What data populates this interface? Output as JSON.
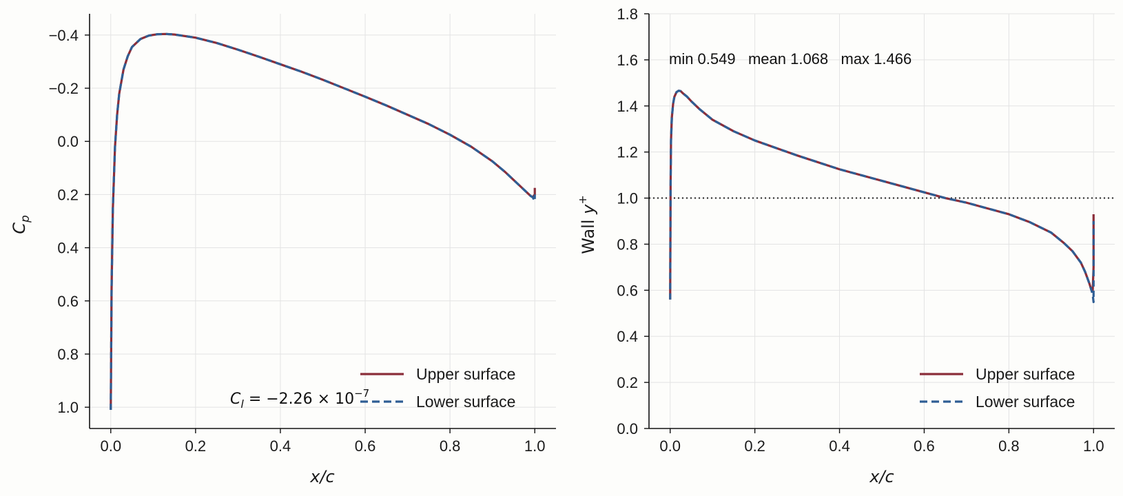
{
  "chart_data": [
    {
      "type": "line",
      "ylabel_symbol": "C",
      "ylabel_sub": "p",
      "xlabel": "x/c",
      "xlim": [
        -0.05,
        1.05
      ],
      "ylim": [
        1.08,
        -0.48
      ],
      "y_inverted": true,
      "grid": true,
      "legend_placement": "lower-right",
      "xticks": [
        0.0,
        0.2,
        0.4,
        0.6,
        0.8,
        1.0
      ],
      "xtick_labels": [
        "0.0",
        "0.2",
        "0.4",
        "0.6",
        "0.8",
        "1.0"
      ],
      "yticks": [
        -0.4,
        -0.2,
        0.0,
        0.2,
        0.4,
        0.6,
        0.8,
        1.0
      ],
      "ytick_labels": [
        "−0.4",
        "−0.2",
        "0.0",
        "0.2",
        "0.4",
        "0.6",
        "0.8",
        "1.0"
      ],
      "annotation": {
        "lhs_symbol": "C",
        "lhs_sub": "l",
        "equals": " = ",
        "mantissa": "−2.26",
        "times": " × ",
        "base": "10",
        "exponent": "−7"
      },
      "series": [
        {
          "name": "Upper surface",
          "color": "#8b2e3a",
          "style": "solid",
          "x": [
            0.0,
            0.002,
            0.005,
            0.01,
            0.015,
            0.02,
            0.03,
            0.04,
            0.05,
            0.07,
            0.09,
            0.11,
            0.13,
            0.15,
            0.2,
            0.25,
            0.3,
            0.35,
            0.4,
            0.45,
            0.5,
            0.55,
            0.6,
            0.65,
            0.7,
            0.75,
            0.8,
            0.85,
            0.9,
            0.93,
            0.95,
            0.97,
            0.98,
            0.99,
            0.995,
            1.0,
            1.0
          ],
          "y": [
            1.01,
            0.55,
            0.25,
            0.02,
            -0.1,
            -0.18,
            -0.27,
            -0.32,
            -0.355,
            -0.385,
            -0.398,
            -0.403,
            -0.404,
            -0.402,
            -0.39,
            -0.37,
            -0.345,
            -0.318,
            -0.29,
            -0.262,
            -0.232,
            -0.2,
            -0.168,
            -0.135,
            -0.1,
            -0.065,
            -0.025,
            0.02,
            0.075,
            0.115,
            0.145,
            0.175,
            0.19,
            0.205,
            0.21,
            0.2,
            0.175
          ]
        },
        {
          "name": "Lower surface",
          "color": "#2f5e94",
          "style": "dashed",
          "x": [
            0.0,
            0.002,
            0.005,
            0.01,
            0.015,
            0.02,
            0.03,
            0.04,
            0.05,
            0.07,
            0.09,
            0.11,
            0.13,
            0.15,
            0.2,
            0.25,
            0.3,
            0.35,
            0.4,
            0.45,
            0.5,
            0.55,
            0.6,
            0.65,
            0.7,
            0.75,
            0.8,
            0.85,
            0.9,
            0.93,
            0.95,
            0.97,
            0.98,
            0.99,
            0.995,
            1.0,
            1.0
          ],
          "y": [
            1.01,
            0.55,
            0.25,
            0.02,
            -0.1,
            -0.18,
            -0.27,
            -0.32,
            -0.355,
            -0.385,
            -0.398,
            -0.403,
            -0.404,
            -0.402,
            -0.39,
            -0.37,
            -0.345,
            -0.318,
            -0.29,
            -0.262,
            -0.232,
            -0.2,
            -0.168,
            -0.135,
            -0.1,
            -0.065,
            -0.025,
            0.02,
            0.075,
            0.115,
            0.145,
            0.175,
            0.19,
            0.205,
            0.21,
            0.225,
            0.2
          ]
        }
      ]
    },
    {
      "type": "line",
      "ylabel_text": "Wall ",
      "ylabel_symbol": "y",
      "ylabel_sup": "+",
      "xlabel": "x/c",
      "xlim": [
        -0.05,
        1.05
      ],
      "ylim": [
        0.0,
        1.8
      ],
      "y_inverted": false,
      "grid": true,
      "legend_placement": "lower-right",
      "xticks": [
        0.0,
        0.2,
        0.4,
        0.6,
        0.8,
        1.0
      ],
      "xtick_labels": [
        "0.0",
        "0.2",
        "0.4",
        "0.6",
        "0.8",
        "1.0"
      ],
      "yticks": [
        0.0,
        0.2,
        0.4,
        0.6,
        0.8,
        1.0,
        1.2,
        1.4,
        1.6,
        1.8
      ],
      "ytick_labels": [
        "0.0",
        "0.2",
        "0.4",
        "0.6",
        "0.8",
        "1.0",
        "1.2",
        "1.4",
        "1.6",
        "1.8"
      ],
      "reference_line": {
        "y": 1.0,
        "style": "dotted",
        "color": "#222222"
      },
      "stats_text": "min 0.549   mean 1.068   max 1.466",
      "series": [
        {
          "name": "Upper surface",
          "color": "#8b2e3a",
          "style": "solid",
          "x": [
            0.0,
            0.0005,
            0.001,
            0.002,
            0.004,
            0.007,
            0.01,
            0.015,
            0.02,
            0.025,
            0.03,
            0.04,
            0.05,
            0.07,
            0.1,
            0.15,
            0.2,
            0.3,
            0.4,
            0.5,
            0.6,
            0.65,
            0.7,
            0.75,
            0.8,
            0.85,
            0.9,
            0.93,
            0.95,
            0.97,
            0.98,
            0.99,
            0.995,
            0.998,
            1.0,
            1.0
          ],
          "y": [
            0.56,
            0.8,
            1.05,
            1.25,
            1.35,
            1.41,
            1.44,
            1.46,
            1.466,
            1.464,
            1.455,
            1.44,
            1.42,
            1.385,
            1.34,
            1.29,
            1.25,
            1.185,
            1.125,
            1.075,
            1.025,
            1.0,
            0.98,
            0.955,
            0.93,
            0.895,
            0.85,
            0.805,
            0.77,
            0.72,
            0.68,
            0.63,
            0.6,
            0.6,
            0.7,
            0.93
          ]
        },
        {
          "name": "Lower surface",
          "color": "#2f5e94",
          "style": "dashed",
          "x": [
            0.0,
            0.0005,
            0.001,
            0.002,
            0.004,
            0.007,
            0.01,
            0.015,
            0.02,
            0.025,
            0.03,
            0.04,
            0.05,
            0.07,
            0.1,
            0.15,
            0.2,
            0.3,
            0.4,
            0.5,
            0.6,
            0.65,
            0.7,
            0.75,
            0.8,
            0.85,
            0.9,
            0.93,
            0.95,
            0.97,
            0.98,
            0.99,
            0.995,
            0.998,
            1.0,
            1.0
          ],
          "y": [
            0.56,
            0.8,
            1.05,
            1.25,
            1.35,
            1.41,
            1.44,
            1.46,
            1.466,
            1.464,
            1.455,
            1.44,
            1.42,
            1.385,
            1.34,
            1.29,
            1.25,
            1.185,
            1.125,
            1.075,
            1.025,
            1.0,
            0.98,
            0.955,
            0.93,
            0.895,
            0.85,
            0.805,
            0.77,
            0.72,
            0.68,
            0.63,
            0.6,
            0.58,
            0.549,
            0.9
          ]
        }
      ]
    }
  ]
}
